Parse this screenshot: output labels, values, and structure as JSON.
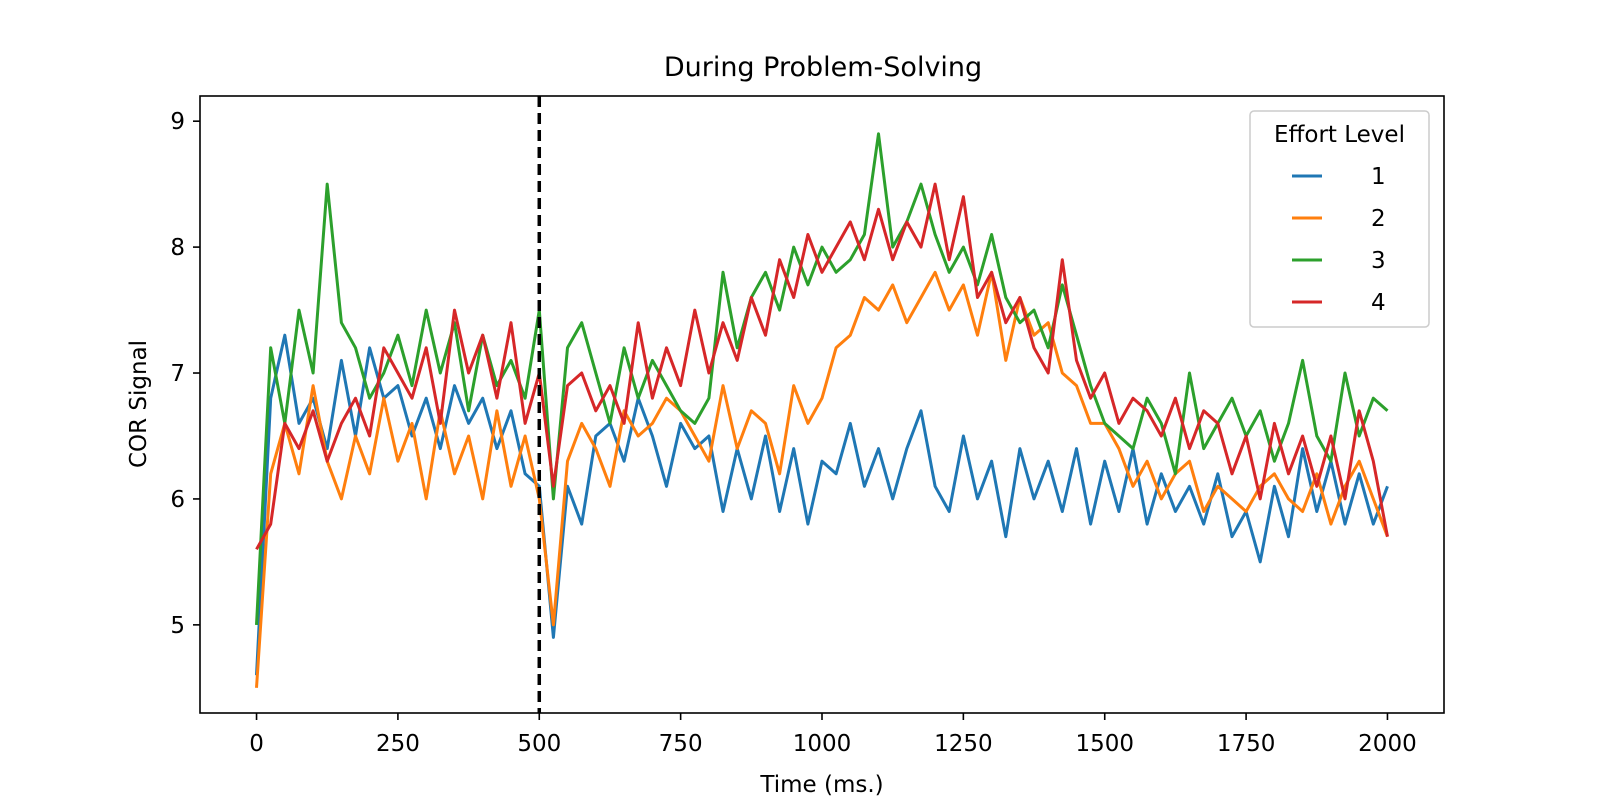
{
  "chart_data": {
    "type": "line",
    "title": "During Problem-Solving",
    "xlabel": "Time (ms.)",
    "ylabel": "COR Signal",
    "xlim": [
      -100,
      2100
    ],
    "ylim": [
      4.3,
      9.2
    ],
    "xticks": [
      0,
      250,
      500,
      750,
      1000,
      1250,
      1500,
      1750,
      2000
    ],
    "yticks": [
      5,
      6,
      7,
      8,
      9
    ],
    "grid": false,
    "legend": {
      "title": "Effort Level",
      "placement": "top-right"
    },
    "annotations": [
      {
        "type": "vertical-dashed-line",
        "x": 500,
        "color": "#000000"
      }
    ],
    "x": [
      0,
      25,
      50,
      75,
      100,
      125,
      150,
      175,
      200,
      225,
      250,
      275,
      300,
      325,
      350,
      375,
      400,
      425,
      450,
      475,
      500,
      525,
      550,
      575,
      600,
      625,
      650,
      675,
      700,
      725,
      750,
      775,
      800,
      825,
      850,
      875,
      900,
      925,
      950,
      975,
      1000,
      1025,
      1050,
      1075,
      1100,
      1125,
      1150,
      1175,
      1200,
      1225,
      1250,
      1275,
      1300,
      1325,
      1350,
      1375,
      1400,
      1425,
      1450,
      1475,
      1500,
      1525,
      1550,
      1575,
      1600,
      1625,
      1650,
      1675,
      1700,
      1725,
      1750,
      1775,
      1800,
      1825,
      1850,
      1875,
      1900,
      1925,
      1950,
      1975,
      2000
    ],
    "series": [
      {
        "name": "1",
        "color": "#1f77b4",
        "values": [
          4.6,
          6.8,
          7.3,
          6.6,
          6.8,
          6.4,
          7.1,
          6.5,
          7.2,
          6.8,
          6.9,
          6.5,
          6.8,
          6.4,
          6.9,
          6.6,
          6.8,
          6.4,
          6.7,
          6.2,
          6.1,
          4.9,
          6.1,
          5.8,
          6.5,
          6.6,
          6.3,
          6.8,
          6.5,
          6.1,
          6.6,
          6.4,
          6.5,
          5.9,
          6.4,
          6.0,
          6.5,
          5.9,
          6.4,
          5.8,
          6.3,
          6.2,
          6.6,
          6.1,
          6.4,
          6.0,
          6.4,
          6.7,
          6.1,
          5.9,
          6.5,
          6.0,
          6.3,
          5.7,
          6.4,
          6.0,
          6.3,
          5.9,
          6.4,
          5.8,
          6.3,
          5.9,
          6.4,
          5.8,
          6.2,
          5.9,
          6.1,
          5.8,
          6.2,
          5.7,
          5.9,
          5.5,
          6.1,
          5.7,
          6.4,
          5.9,
          6.3,
          5.8,
          6.2,
          5.8,
          6.1
        ]
      },
      {
        "name": "2",
        "color": "#ff7f0e",
        "values": [
          4.5,
          6.2,
          6.6,
          6.2,
          6.9,
          6.3,
          6.0,
          6.5,
          6.2,
          6.8,
          6.3,
          6.6,
          6.0,
          6.7,
          6.2,
          6.5,
          6.0,
          6.7,
          6.1,
          6.5,
          6.0,
          5.0,
          6.3,
          6.6,
          6.4,
          6.1,
          6.7,
          6.5,
          6.6,
          6.8,
          6.7,
          6.5,
          6.3,
          6.9,
          6.4,
          6.7,
          6.6,
          6.2,
          6.9,
          6.6,
          6.8,
          7.2,
          7.3,
          7.6,
          7.5,
          7.7,
          7.4,
          7.6,
          7.8,
          7.5,
          7.7,
          7.3,
          7.8,
          7.1,
          7.6,
          7.3,
          7.4,
          7.0,
          6.9,
          6.6,
          6.6,
          6.4,
          6.1,
          6.3,
          6.0,
          6.2,
          6.3,
          5.9,
          6.1,
          6.0,
          5.9,
          6.1,
          6.2,
          6.0,
          5.9,
          6.2,
          5.8,
          6.1,
          6.3,
          6.0,
          5.7
        ]
      },
      {
        "name": "3",
        "color": "#2ca02c",
        "values": [
          5.0,
          7.2,
          6.6,
          7.5,
          7.0,
          8.5,
          7.4,
          7.2,
          6.8,
          7.0,
          7.3,
          6.9,
          7.5,
          7.0,
          7.4,
          6.7,
          7.3,
          6.9,
          7.1,
          6.8,
          7.5,
          6.0,
          7.2,
          7.4,
          7.0,
          6.6,
          7.2,
          6.8,
          7.1,
          6.9,
          6.7,
          6.6,
          6.8,
          7.8,
          7.2,
          7.6,
          7.8,
          7.5,
          8.0,
          7.7,
          8.0,
          7.8,
          7.9,
          8.1,
          8.9,
          8.0,
          8.2,
          8.5,
          8.1,
          7.8,
          8.0,
          7.7,
          8.1,
          7.6,
          7.4,
          7.5,
          7.2,
          7.7,
          7.3,
          6.9,
          6.6,
          6.5,
          6.4,
          6.8,
          6.6,
          6.2,
          7.0,
          6.4,
          6.6,
          6.8,
          6.5,
          6.7,
          6.3,
          6.6,
          7.1,
          6.5,
          6.3,
          7.0,
          6.5,
          6.8,
          6.7
        ]
      },
      {
        "name": "4",
        "color": "#d62728",
        "values": [
          5.6,
          5.8,
          6.6,
          6.4,
          6.7,
          6.3,
          6.6,
          6.8,
          6.5,
          7.2,
          7.0,
          6.8,
          7.2,
          6.6,
          7.5,
          7.0,
          7.3,
          6.8,
          7.4,
          6.6,
          7.0,
          6.1,
          6.9,
          7.0,
          6.7,
          6.9,
          6.6,
          7.4,
          6.8,
          7.2,
          6.9,
          7.5,
          7.0,
          7.4,
          7.1,
          7.6,
          7.3,
          7.9,
          7.6,
          8.1,
          7.8,
          8.0,
          8.2,
          7.9,
          8.3,
          7.9,
          8.2,
          8.0,
          8.5,
          7.9,
          8.4,
          7.6,
          7.8,
          7.4,
          7.6,
          7.2,
          7.0,
          7.9,
          7.1,
          6.8,
          7.0,
          6.6,
          6.8,
          6.7,
          6.5,
          6.8,
          6.4,
          6.7,
          6.6,
          6.2,
          6.5,
          6.0,
          6.6,
          6.2,
          6.5,
          6.1,
          6.5,
          6.0,
          6.7,
          6.3,
          5.7
        ]
      }
    ]
  }
}
